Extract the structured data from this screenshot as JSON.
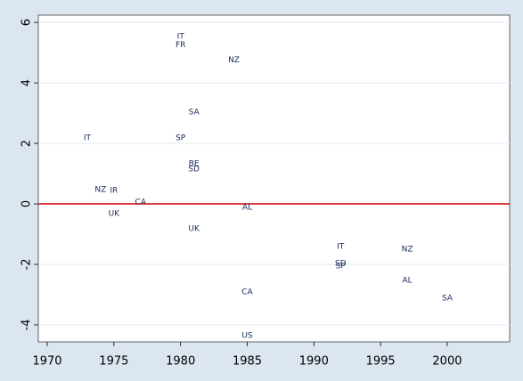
{
  "chart_data": {
    "type": "scatter",
    "labels": [
      "IT",
      "FR",
      "NZ",
      "SA",
      "IT",
      "SP",
      "BE",
      "SD",
      "NZ",
      "IR",
      "CA",
      "UK",
      "AL",
      "UK",
      "IT",
      "NZ",
      "SD",
      "SP",
      "AL",
      "CA",
      "SA",
      "US"
    ],
    "x": [
      1980,
      1980,
      1984,
      1981,
      1973,
      1980,
      1981,
      1981,
      1974,
      1975,
      1977,
      1975,
      1985,
      1981,
      1992,
      1997,
      1992,
      1992,
      1997,
      1985,
      2000,
      1985
    ],
    "values": [
      5.53,
      5.26,
      4.76,
      3.03,
      2.18,
      2.18,
      1.32,
      1.15,
      0.47,
      0.44,
      0.06,
      -0.32,
      -0.12,
      -0.82,
      -1.41,
      -1.5,
      -1.97,
      -2.06,
      -2.53,
      -2.91,
      -3.12,
      -4.35
    ],
    "xlim": [
      1969.33,
      2004.68
    ],
    "ylim": [
      -4.56,
      6.24
    ],
    "xticks": [
      1970,
      1975,
      1980,
      1985,
      1990,
      1995,
      2000
    ],
    "yticks": [
      -4,
      -2,
      0,
      2,
      4,
      6
    ],
    "grid": true,
    "reference_line": {
      "value": 0,
      "color": "#cc0000"
    }
  }
}
